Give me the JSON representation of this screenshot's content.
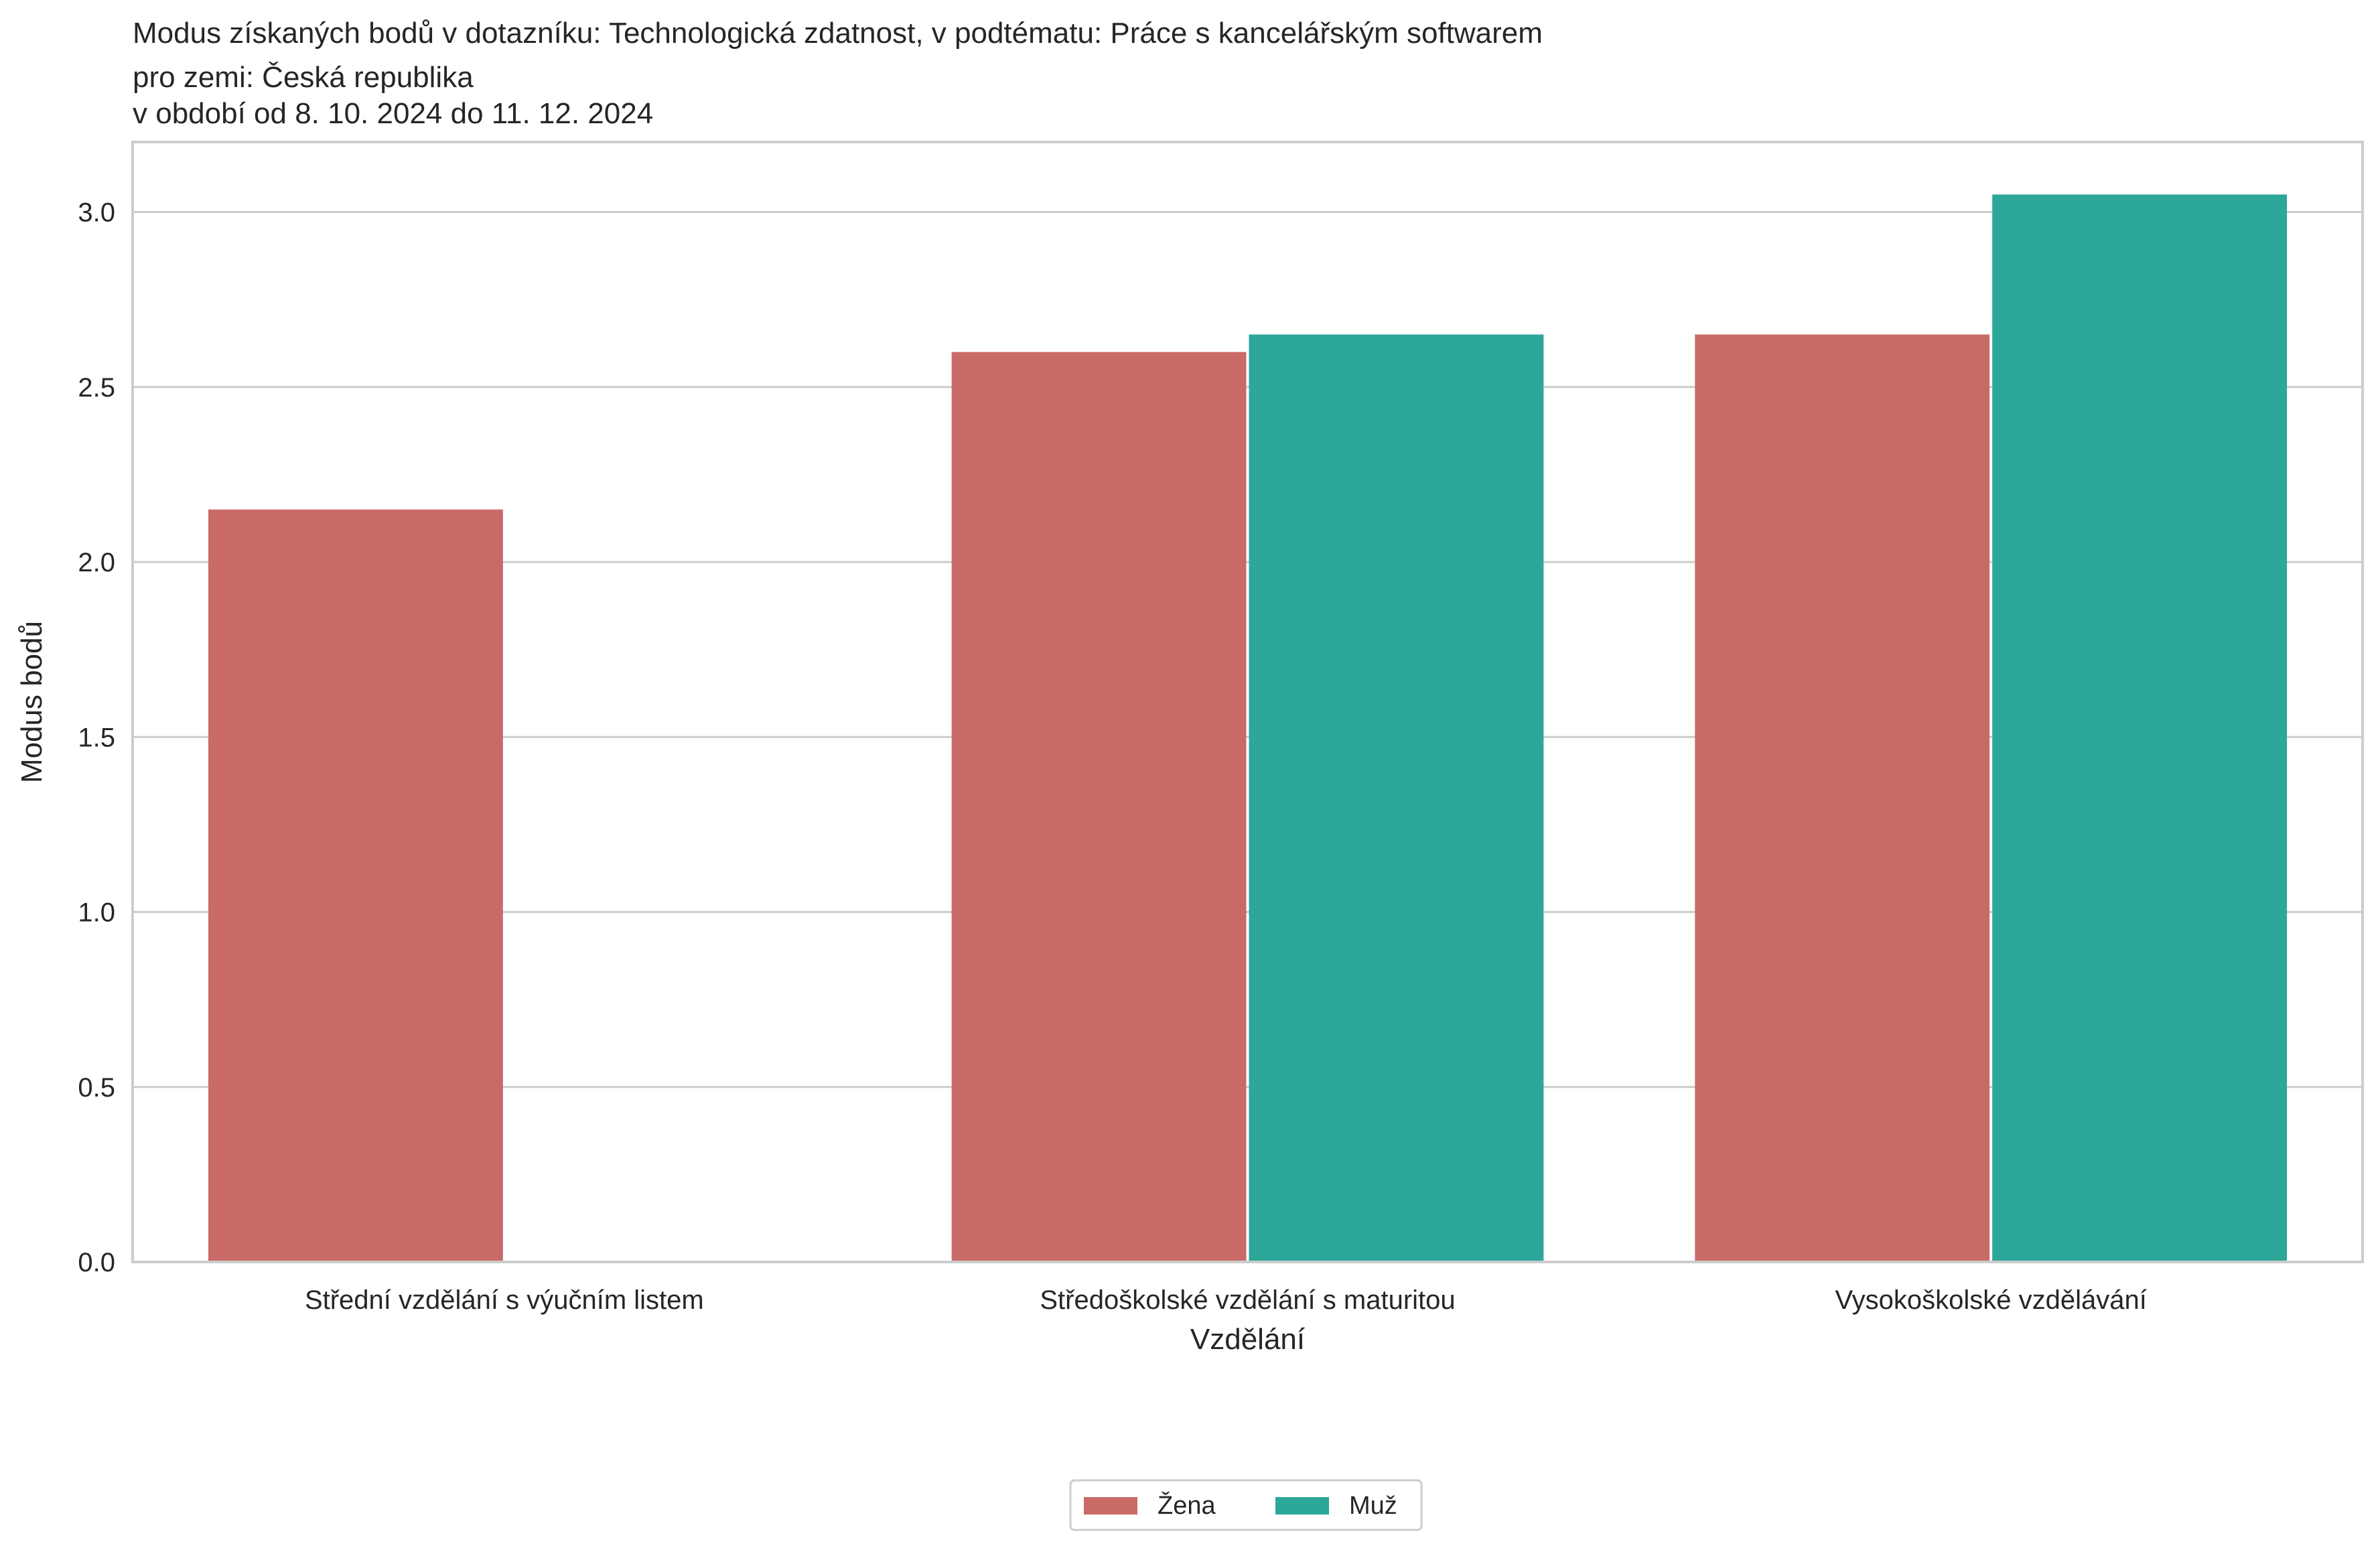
{
  "chart_data": {
    "type": "bar",
    "title_lines": [
      "Modus získaných bodů v dotazníku: Technologická zdatnost, v podtématu: Práce s kancelářským softwarem",
      "pro zemi: Česká republika",
      "v období od 8. 10. 2024 do 11. 12. 2024"
    ],
    "xlabel": "Vzdělání",
    "ylabel": "Modus bodů",
    "categories": [
      "Střední vzdělání s výučním listem",
      "Středoškolské vzdělání s maturitou",
      "Vysokoškolské vzdělávání"
    ],
    "series": [
      {
        "name": "Žena",
        "color": "#c96a67",
        "values": [
          2.15,
          2.6,
          2.65
        ]
      },
      {
        "name": "Muž",
        "color": "#2ca79a",
        "values": [
          null,
          2.65,
          3.05
        ]
      }
    ],
    "ylim": [
      0,
      3.2
    ],
    "yticks": [
      "0.0",
      "0.5",
      "1.0",
      "1.5",
      "2.0",
      "2.5",
      "3.0"
    ],
    "grid": "horizontal",
    "legend_placement": "bottom-center"
  }
}
